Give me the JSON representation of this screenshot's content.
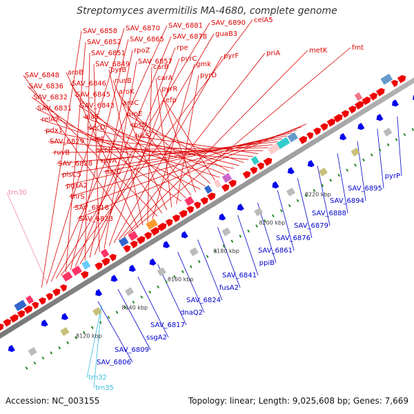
{
  "title": "Streptomyces avermitilis MA-4680, complete genome",
  "footer": {
    "accession": "Accession: NC_003155",
    "summary": "Topology: linear; Length: 9,025,608 bp; Genes: 7,669"
  },
  "colors": {
    "forward_label": "#dd0000",
    "reverse_label": "#0000cc",
    "trna_label": "#33bbdd",
    "pseudo_label": "#ee88aa",
    "backbone": "#8c8c8c",
    "tick": "#228822"
  },
  "ticks": [
    {
      "label": "8120 kbp"
    },
    {
      "label": "8140 kbp"
    },
    {
      "label": "8160 kbp"
    },
    {
      "label": "8180 kbp"
    },
    {
      "label": "8200 kbp"
    },
    {
      "label": "8220 kbp"
    }
  ],
  "forward_labels": [
    "SAV_6858",
    "SAV_6870",
    "SAV_6881",
    "SAV_6890",
    "celA5",
    "SAV_6852",
    "SAV_6865",
    "SAV_6878",
    "guaB3",
    "SAV_6851",
    "rpoZ",
    "rpe",
    "SAV_6849",
    "SAV_6857",
    "pyrC",
    "pyrF",
    "priA",
    "metK",
    "fmt",
    "SAV_6848",
    "aroB",
    "pyrB",
    "carB",
    "gmk",
    "SAV_6836",
    "SAV_6846",
    "nusB",
    "carA",
    "pyrD",
    "SAV_6832",
    "SAV_6845",
    "aroK",
    "pyrR",
    "SAV_6831",
    "SAV_6843",
    "aroC",
    "efp",
    "relA2",
    "alaS",
    "aroE",
    "pdx1",
    "secD",
    "rpsD",
    "SAV_6829",
    "apt",
    "hisS",
    "ruvB",
    "secF",
    "SAV_6828",
    "ruvA",
    "plsC5",
    "ruvC",
    "pgsA2",
    "thrS",
    "SAV_6818",
    "SAV_6823"
  ],
  "pseudo_labels": [
    "trn30"
  ],
  "reverse_labels": [
    "pyrP",
    "SAV_6895",
    "SAV_6894",
    "SAV_6888",
    "SAV_6879",
    "SAV_6876",
    "SAV_6861",
    "ppiB",
    "SAV_6841",
    "fusA2",
    "SAV_6824",
    "dnaQ2",
    "SAV_6817",
    "ssgA2",
    "SAV_6809",
    "SAV_6806"
  ],
  "trna_labels": [
    "trn32",
    "trn35"
  ]
}
